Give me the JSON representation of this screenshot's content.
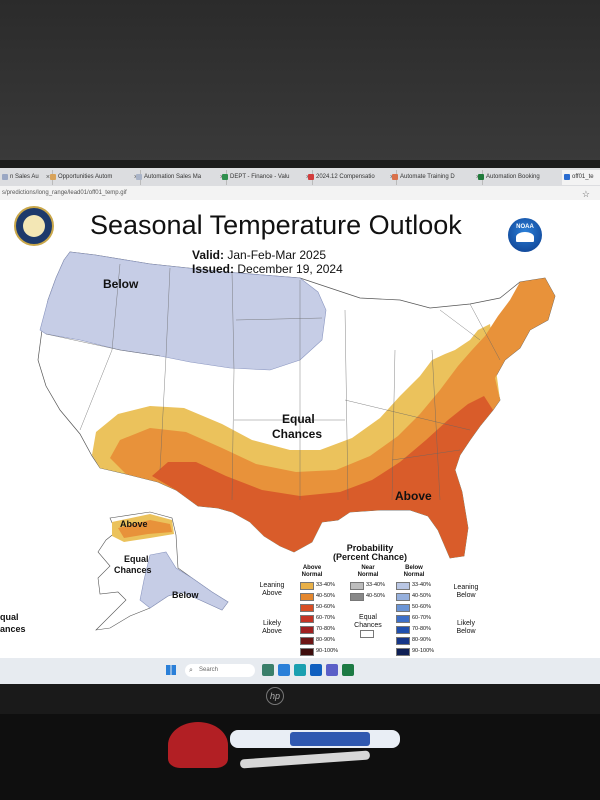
{
  "browser": {
    "tabs": [
      {
        "label": "n Sales Au",
        "color": "#9aa7c4"
      },
      {
        "label": "Opportunities Autom",
        "color": "#d8a35a"
      },
      {
        "label": "Automation Sales Ma",
        "color": "#aab4c8"
      },
      {
        "label": "DEPT - Finance - Valu",
        "color": "#2f8f4e"
      },
      {
        "label": "2024.12 Compensatio",
        "color": "#d23c3c"
      },
      {
        "label": "Automate Training D",
        "color": "#d9704a"
      },
      {
        "label": "Automation Booking",
        "color": "#1f7a3a"
      },
      {
        "label": "off01_te",
        "color": "#2a6cd0"
      }
    ],
    "tab_close_glyph": "×",
    "url": "s/predictions/long_range/lead01/off01_temp.gif",
    "star_glyph": "☆"
  },
  "page": {
    "title": "Seasonal Temperature Outlook",
    "valid_label": "Valid:",
    "valid_value": "Jan-Feb-Mar 2025",
    "issued_label": "Issued:",
    "issued_value": "December 19, 2024",
    "noaa_text": "NOAA"
  },
  "map_labels": {
    "below": "Below",
    "equal": "Equal",
    "chances": "Chances",
    "above": "Above",
    "ak_above": "Above",
    "ak_equal": "Equal",
    "ak_chances": "Chances",
    "ak_below": "Below",
    "hi_equal": "qual",
    "hi_chances": "ances"
  },
  "legend": {
    "title_line1": "Probability",
    "title_line2": "(Percent Chance)",
    "above_hdr1": "Above",
    "above_hdr2": "Normal",
    "near_hdr1": "Near",
    "near_hdr2": "Normal",
    "below_hdr1": "Below",
    "below_hdr2": "Normal",
    "leaning_above_1": "Leaning",
    "leaning_above_2": "Above",
    "likely_above_1": "Likely",
    "likely_above_2": "Above",
    "leaning_below_1": "Leaning",
    "leaning_below_2": "Below",
    "likely_below_1": "Likely",
    "likely_below_2": "Below",
    "equal_1": "Equal",
    "equal_2": "Chances",
    "above": [
      {
        "label": "33-40%",
        "color": "#e8b048"
      },
      {
        "label": "40-50%",
        "color": "#e4872e"
      },
      {
        "label": "50-60%",
        "color": "#d84e24"
      },
      {
        "label": "60-70%",
        "color": "#c43424"
      },
      {
        "label": "70-80%",
        "color": "#a02020"
      },
      {
        "label": "80-90%",
        "color": "#6d1515"
      },
      {
        "label": "90-100%",
        "color": "#3d0c0c"
      }
    ],
    "near": [
      {
        "label": "33-40%",
        "color": "#bdbdbd"
      },
      {
        "label": "40-50%",
        "color": "#888888"
      }
    ],
    "below": [
      {
        "label": "33-40%",
        "color": "#b9c6e4"
      },
      {
        "label": "40-50%",
        "color": "#96b0dd"
      },
      {
        "label": "50-60%",
        "color": "#6b95d6"
      },
      {
        "label": "60-70%",
        "color": "#3d6fc8"
      },
      {
        "label": "70-80%",
        "color": "#1f4fae"
      },
      {
        "label": "80-90%",
        "color": "#163688"
      },
      {
        "label": "90-100%",
        "color": "#0e1f55"
      }
    ]
  },
  "colors": {
    "below_fill": "#c6cde6",
    "lean_above_fill": "#ebc25c",
    "above_40_fill": "#e8923a",
    "above_50_fill": "#d95c2a",
    "land_fill": "#ffffff"
  },
  "taskbar": {
    "search_placeholder": "Search",
    "apps": [
      {
        "name": "widgets-icon",
        "color": "#3a7f6a"
      },
      {
        "name": "chrome-icon",
        "color": "#2a7fd8"
      },
      {
        "name": "edge-icon",
        "color": "#1a9fb0"
      },
      {
        "name": "outlook-icon",
        "color": "#0f5fbf"
      },
      {
        "name": "teams-icon",
        "color": "#5b5fc7"
      },
      {
        "name": "excel-icon",
        "color": "#1d7a44"
      }
    ]
  },
  "monitor": {
    "brand": "hp"
  }
}
